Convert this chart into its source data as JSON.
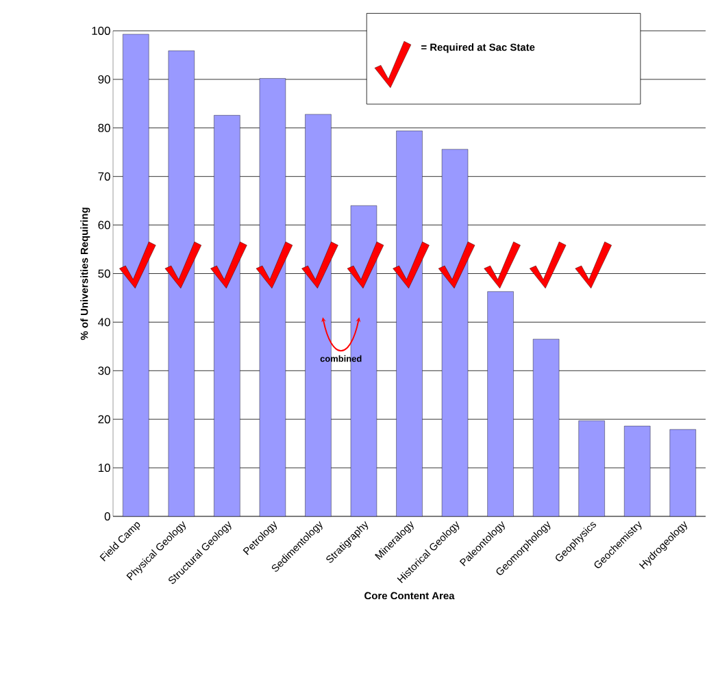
{
  "chart_data": {
    "type": "bar",
    "xlabel": "Core Content Area",
    "ylabel": "% of Universities Requiring",
    "categories": [
      "Field Camp",
      "Physical Geology",
      "Structural Geology",
      "Petrology",
      "Sedimentology",
      "Stratigraphy",
      "Mineralogy",
      "Historical Geology",
      "Paleontology",
      "Geomorphology",
      "Geophysics",
      "Geochemistry",
      "Hydrogeology"
    ],
    "values": [
      99.3,
      95.9,
      82.6,
      90.2,
      82.8,
      64.0,
      79.4,
      75.6,
      46.3,
      36.5,
      19.7,
      18.6,
      17.9
    ],
    "color": "#9999ff",
    "ylim": [
      0,
      100
    ],
    "yticks": [
      0,
      10,
      20,
      30,
      40,
      50,
      60,
      70,
      80,
      90,
      100
    ],
    "grid": "y",
    "annotations": [
      "= Required at Sac State",
      "combined"
    ]
  }
}
